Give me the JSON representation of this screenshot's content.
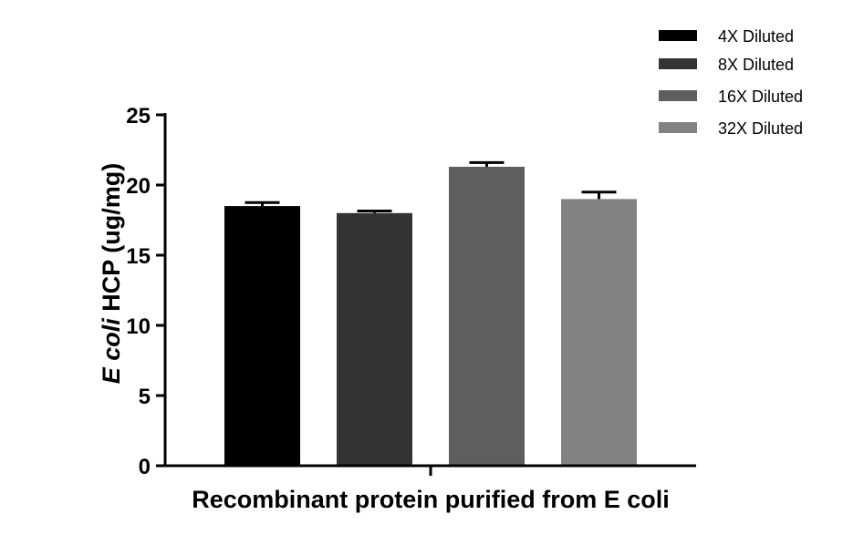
{
  "chart_data": {
    "type": "bar",
    "xlabel": "Recombinant protein purified from E coli",
    "ylabel": {
      "italic_part": "E coli",
      "rest": " HCP (ug/mg)"
    },
    "ylim": [
      0,
      25
    ],
    "yticks": [
      0,
      5,
      10,
      15,
      20,
      25
    ],
    "ytick_labels": [
      "0",
      "5",
      "10",
      "15",
      "20",
      "25"
    ],
    "grid": false,
    "legend_position": "top-right",
    "series": [
      {
        "name": "4X Diluted",
        "value": 18.5,
        "error": 0.25,
        "color": "#000000"
      },
      {
        "name": "8X Diluted",
        "value": 18.0,
        "error": 0.15,
        "color": "#333333"
      },
      {
        "name": "16X Diluted",
        "value": 21.3,
        "error": 0.3,
        "color": "#5e5e5e"
      },
      {
        "name": "32X Diluted",
        "value": 19.0,
        "error": 0.5,
        "color": "#828282"
      }
    ]
  }
}
